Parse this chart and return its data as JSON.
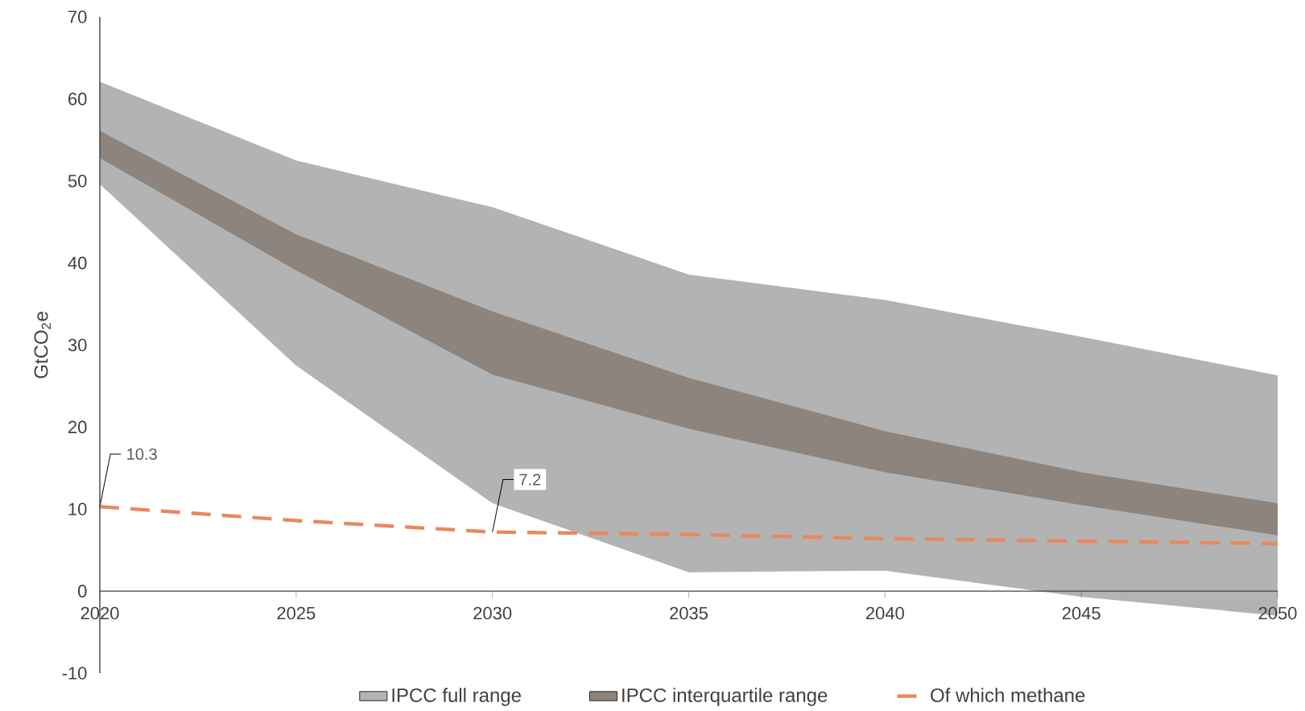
{
  "chart_data": {
    "type": "line",
    "ylabel": "GtCO$_{2}$e",
    "x": [
      2020,
      2025,
      2030,
      2035,
      2040,
      2045,
      2050
    ],
    "xlim": [
      2020,
      2050
    ],
    "xticks": [
      2020,
      2025,
      2030,
      2035,
      2040,
      2045,
      2050
    ],
    "ylim": [
      -10,
      70
    ],
    "yticks": [
      -10,
      0,
      10,
      20,
      30,
      40,
      50,
      60,
      70
    ],
    "grid": false,
    "legend": "bottom",
    "series": [
      {
        "name": "IPCC full range",
        "type": "area",
        "color": "#b3b3b3",
        "values": [
          null,
          null,
          null,
          null,
          null,
          null,
          null
        ],
        "upper": [
          62.1,
          52.5,
          46.8,
          38.6,
          35.5,
          31.0,
          26.3
        ],
        "lower": [
          49.6,
          27.5,
          10.7,
          2.3,
          2.5,
          -0.7,
          -3.0
        ]
      },
      {
        "name": "IPCC interquartile range",
        "type": "area",
        "color": "#8c847d",
        "values": [
          null,
          null,
          null,
          null,
          null,
          null,
          null
        ],
        "upper": [
          56.1,
          43.5,
          34.1,
          26.0,
          19.5,
          14.5,
          10.7
        ],
        "lower": [
          52.8,
          39.1,
          26.4,
          19.8,
          14.5,
          10.5,
          6.8
        ]
      },
      {
        "name": "Of which methane",
        "color": "#e8895e",
        "line_style": "dashed",
        "values": [
          10.3,
          8.6,
          7.2,
          6.9,
          6.4,
          6.1,
          5.8
        ],
        "value_labels": [
          "10.3",
          null,
          "7.2",
          null,
          null,
          null,
          null
        ]
      }
    ]
  }
}
